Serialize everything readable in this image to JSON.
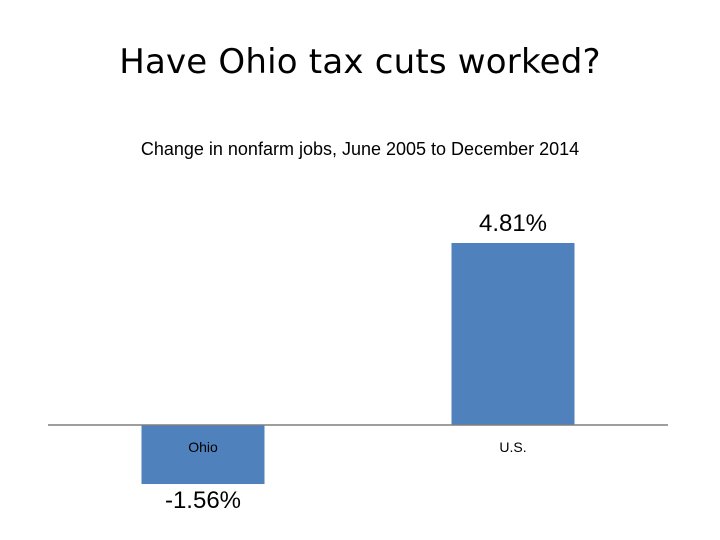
{
  "slide": {
    "title": "Have Ohio tax cuts worked?"
  },
  "chart_data": {
    "type": "bar",
    "title": "Change in nonfarm jobs, June 2005 to December 2014",
    "categories": [
      "Ohio",
      "U.S."
    ],
    "values": [
      -1.56,
      4.81
    ],
    "data_labels": [
      "-1.56%",
      "4.81%"
    ],
    "xlabel": "",
    "ylabel": "",
    "unit": "%",
    "grid": false,
    "legend": "none",
    "bar_color": "#4f81bd",
    "axis_color": "#7f7f7f"
  }
}
